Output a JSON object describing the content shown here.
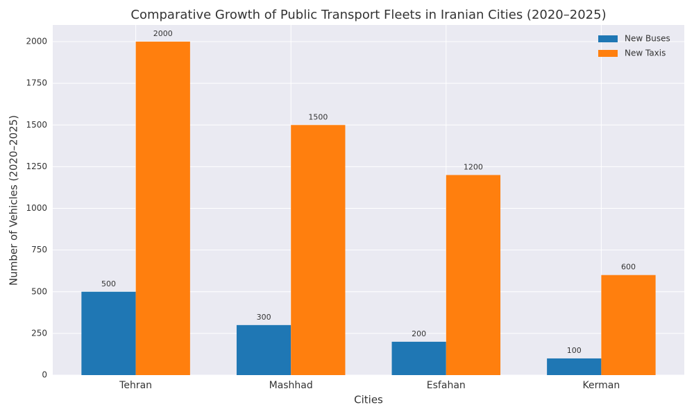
{
  "chart_data": {
    "type": "bar",
    "title": "Comparative Growth of Public Transport Fleets in Iranian Cities (2020–2025)",
    "x_label": "Cities",
    "y_label": "Number of Vehicles (2020–2025)",
    "categories": [
      "Tehran",
      "Mashhad",
      "Esfahan",
      "Kerman"
    ],
    "series": [
      {
        "name": "New Buses",
        "color": "#1f77b4",
        "values": [
          500,
          300,
          200,
          100
        ]
      },
      {
        "name": "New Taxis",
        "color": "#ff7f0e",
        "values": [
          2000,
          1500,
          1200,
          600
        ]
      }
    ],
    "ylim": [
      0,
      2100
    ],
    "yticks": [
      0,
      250,
      500,
      750,
      1000,
      1250,
      1500,
      1750,
      2000
    ],
    "grid": true,
    "legend": "upper right"
  }
}
